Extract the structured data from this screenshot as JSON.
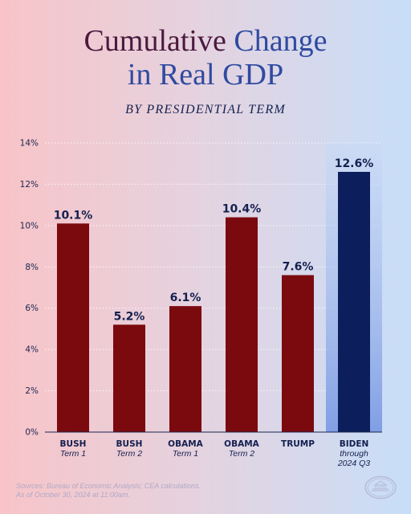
{
  "title": {
    "part1": "Cumulative",
    "part2": "Change",
    "part3": "in Real GDP"
  },
  "subtitle": "BY PRESIDENTIAL TERM",
  "sources": {
    "line1": "Sources: Bureau of Economic Analysis; CEA calculations.",
    "line2": "As of October 30, 2024 at 11:00am."
  },
  "colors": {
    "bar_red": "#7b0a0e",
    "bar_blue": "#0c1f5c",
    "highlight": "#8ca8e8"
  },
  "chart_data": {
    "type": "bar",
    "title": "Cumulative Change in Real GDP",
    "subtitle": "BY PRESIDENTIAL TERM",
    "xlabel": "",
    "ylabel": "",
    "ylim": [
      0,
      14
    ],
    "yticks": [
      0,
      2,
      4,
      6,
      8,
      10,
      12,
      14
    ],
    "ytick_labels": [
      "0%",
      "2%",
      "4%",
      "6%",
      "8%",
      "10%",
      "12%",
      "14%"
    ],
    "grid": "horizontal dotted",
    "categories": [
      {
        "name": "BUSH",
        "sub": [
          "Term 1"
        ]
      },
      {
        "name": "BUSH",
        "sub": [
          "Term 2"
        ]
      },
      {
        "name": "OBAMA",
        "sub": [
          "Term 1"
        ]
      },
      {
        "name": "OBAMA",
        "sub": [
          "Term 2"
        ]
      },
      {
        "name": "TRUMP",
        "sub": []
      },
      {
        "name": "BIDEN",
        "sub": [
          "through",
          "2024 Q3"
        ]
      }
    ],
    "values": [
      10.1,
      5.2,
      6.1,
      10.4,
      7.6,
      12.6
    ],
    "value_labels": [
      "10.1%",
      "5.2%",
      "6.1%",
      "10.4%",
      "7.6%",
      "12.6%"
    ],
    "highlighted_index": 5
  }
}
